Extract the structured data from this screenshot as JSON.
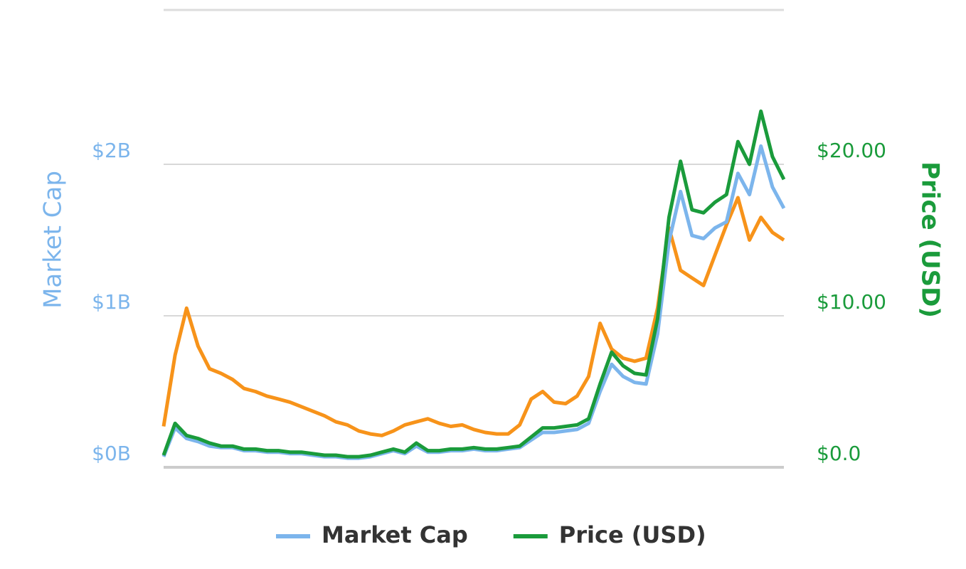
{
  "chart_data": {
    "type": "line",
    "y_label": "Market Cap",
    "y2_label": "Price (USD)",
    "ylim": [
      0,
      3
    ],
    "yticks": [
      {
        "value": 0,
        "label": "$0B"
      },
      {
        "value": 1,
        "label": "$1B"
      },
      {
        "value": 2,
        "label": "$2B"
      }
    ],
    "y2lim": [
      0,
      30
    ],
    "y2ticks": [
      {
        "value": 0,
        "label": "$0.0"
      },
      {
        "value": 10,
        "label": "$10.00"
      },
      {
        "value": 20,
        "label": "$20.00"
      }
    ],
    "grid": true,
    "legend": "bottom",
    "series": [
      {
        "color": "#f7931a",
        "axis": "y",
        "values": [
          0.27,
          0.74,
          1.05,
          0.8,
          0.65,
          0.62,
          0.58,
          0.52,
          0.5,
          0.47,
          0.45,
          0.43,
          0.4,
          0.37,
          0.34,
          0.3,
          0.28,
          0.24,
          0.22,
          0.21,
          0.24,
          0.28,
          0.3,
          0.32,
          0.29,
          0.27,
          0.28,
          0.25,
          0.23,
          0.22,
          0.22,
          0.28,
          0.45,
          0.5,
          0.43,
          0.42,
          0.47,
          0.6,
          0.95,
          0.78,
          0.72,
          0.7,
          0.72,
          1.05,
          1.58,
          1.3,
          1.25,
          1.2,
          1.4,
          1.6,
          1.78,
          1.5,
          1.65,
          1.55,
          1.5
        ]
      },
      {
        "name": "Market Cap",
        "color": "#7cb5ec",
        "axis": "y",
        "values": [
          0.07,
          0.26,
          0.19,
          0.17,
          0.14,
          0.13,
          0.13,
          0.11,
          0.11,
          0.1,
          0.1,
          0.09,
          0.09,
          0.08,
          0.07,
          0.07,
          0.06,
          0.06,
          0.07,
          0.09,
          0.11,
          0.09,
          0.14,
          0.1,
          0.1,
          0.11,
          0.11,
          0.12,
          0.11,
          0.11,
          0.12,
          0.13,
          0.18,
          0.23,
          0.23,
          0.24,
          0.25,
          0.29,
          0.5,
          0.68,
          0.6,
          0.56,
          0.55,
          0.88,
          1.49,
          1.82,
          1.53,
          1.51,
          1.58,
          1.62,
          1.94,
          1.8,
          2.12,
          1.85,
          1.71
        ]
      },
      {
        "name": "Price (USD)",
        "color": "#1a9b3b",
        "axis": "y2",
        "values": [
          0.8,
          2.9,
          2.1,
          1.9,
          1.6,
          1.4,
          1.4,
          1.2,
          1.2,
          1.1,
          1.1,
          1.0,
          1.0,
          0.9,
          0.8,
          0.8,
          0.7,
          0.7,
          0.8,
          1.0,
          1.2,
          1.0,
          1.6,
          1.1,
          1.1,
          1.2,
          1.2,
          1.3,
          1.2,
          1.2,
          1.3,
          1.4,
          2.0,
          2.6,
          2.6,
          2.7,
          2.8,
          3.2,
          5.5,
          7.6,
          6.7,
          6.2,
          6.1,
          9.8,
          16.5,
          20.2,
          17.0,
          16.8,
          17.5,
          18.0,
          21.5,
          20.0,
          23.5,
          20.5,
          19.0
        ]
      }
    ]
  }
}
